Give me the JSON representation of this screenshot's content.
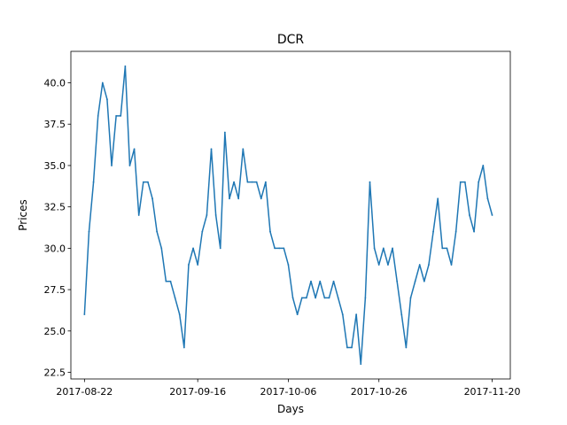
{
  "chart_data": {
    "type": "line",
    "title": "DCR",
    "xlabel": "Days",
    "ylabel": "Prices",
    "x_start": "2017-08-22",
    "x_end": "2017-11-20",
    "xlim": [
      "2017-08-19",
      "2017-11-24"
    ],
    "ylim": [
      22.1,
      41.9
    ],
    "grid": false,
    "x_ticks": [
      "2017-08-22",
      "2017-09-16",
      "2017-10-06",
      "2017-10-26",
      "2017-11-20"
    ],
    "y_ticks": [
      "22.5",
      "25.0",
      "27.5",
      "30.0",
      "32.5",
      "35.0",
      "37.5",
      "40.0"
    ],
    "series": [
      {
        "name": "",
        "color": "#1f77b4",
        "x": [
          "2017-08-22",
          "2017-08-23",
          "2017-08-24",
          "2017-08-25",
          "2017-08-26",
          "2017-08-27",
          "2017-08-28",
          "2017-08-29",
          "2017-08-30",
          "2017-08-31",
          "2017-09-01",
          "2017-09-02",
          "2017-09-03",
          "2017-09-04",
          "2017-09-05",
          "2017-09-06",
          "2017-09-07",
          "2017-09-08",
          "2017-09-09",
          "2017-09-10",
          "2017-09-11",
          "2017-09-12",
          "2017-09-13",
          "2017-09-14",
          "2017-09-15",
          "2017-09-16",
          "2017-09-17",
          "2017-09-18",
          "2017-09-19",
          "2017-09-20",
          "2017-09-21",
          "2017-09-22",
          "2017-09-23",
          "2017-09-24",
          "2017-09-25",
          "2017-09-26",
          "2017-09-27",
          "2017-09-28",
          "2017-09-29",
          "2017-09-30",
          "2017-10-01",
          "2017-10-02",
          "2017-10-03",
          "2017-10-04",
          "2017-10-05",
          "2017-10-06",
          "2017-10-07",
          "2017-10-08",
          "2017-10-09",
          "2017-10-10",
          "2017-10-11",
          "2017-10-12",
          "2017-10-13",
          "2017-10-14",
          "2017-10-15",
          "2017-10-16",
          "2017-10-17",
          "2017-10-18",
          "2017-10-19",
          "2017-10-20",
          "2017-10-21",
          "2017-10-22",
          "2017-10-23",
          "2017-10-24",
          "2017-10-25",
          "2017-10-26",
          "2017-10-27",
          "2017-10-28",
          "2017-10-29",
          "2017-10-30",
          "2017-10-31",
          "2017-11-01",
          "2017-11-02",
          "2017-11-03",
          "2017-11-04",
          "2017-11-05",
          "2017-11-06",
          "2017-11-07",
          "2017-11-08",
          "2017-11-09",
          "2017-11-10",
          "2017-11-11",
          "2017-11-12",
          "2017-11-13",
          "2017-11-14",
          "2017-11-15",
          "2017-11-16",
          "2017-11-17",
          "2017-11-18",
          "2017-11-19",
          "2017-11-20"
        ],
        "y": [
          26,
          31,
          34,
          38,
          40,
          39,
          35,
          38,
          38,
          41,
          35,
          36,
          32,
          34,
          34,
          33,
          31,
          30,
          28,
          28,
          27,
          26,
          24,
          29,
          30,
          29,
          31,
          32,
          36,
          32,
          30,
          37,
          33,
          34,
          33,
          36,
          34,
          34,
          34,
          33,
          34,
          31,
          30,
          30,
          30,
          29,
          27,
          26,
          27,
          27,
          28,
          27,
          28,
          27,
          27,
          28,
          27,
          26,
          24,
          24,
          26,
          23,
          27,
          34,
          30,
          29,
          30,
          29,
          30,
          28,
          26,
          24,
          27,
          28,
          29,
          28,
          29,
          31,
          33,
          30,
          30,
          29,
          31,
          34,
          34,
          32,
          31,
          34,
          35,
          33,
          32
        ]
      }
    ]
  }
}
